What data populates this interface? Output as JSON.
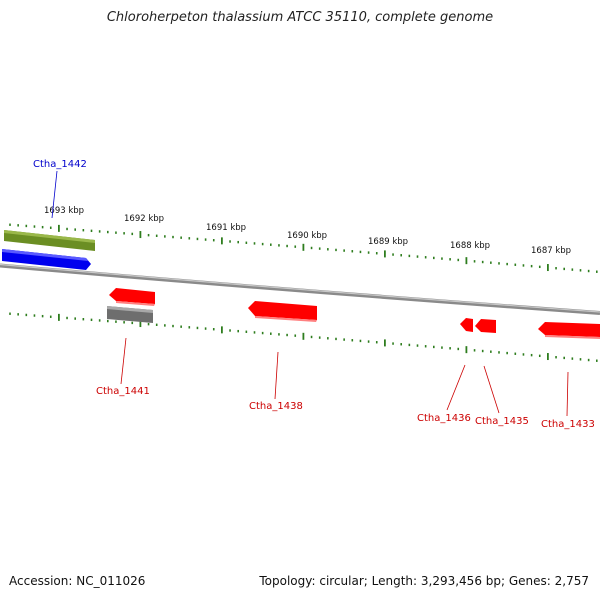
{
  "title": "Chloroherpeton thalassium ATCC 35110, complete genome",
  "footer": {
    "accession": "Accession: NC_011026",
    "summary": "Topology: circular; Length: 3,293,456 bp; Genes: 2,757"
  },
  "colors": {
    "tick": "#2e7d1e",
    "backbone": "#8a8a8a",
    "gene_red": "#ff0000",
    "gene_blue": "#0000ee",
    "gene_olive": "#6b8e23",
    "gene_gray": "#707070",
    "label_red": "#cc0000",
    "label_blue": "#0000cc"
  },
  "scale_labels": [
    "1693 kbp",
    "1692 kbp",
    "1691 kbp",
    "1690 kbp",
    "1689 kbp",
    "1688 kbp",
    "1687 kbp"
  ],
  "genes": [
    {
      "label": "Ctha_1442",
      "strand": "+",
      "color": "blue"
    },
    {
      "label": "Ctha_1441",
      "strand": "-",
      "color": "red"
    },
    {
      "label": "Ctha_1438",
      "strand": "-",
      "color": "red"
    },
    {
      "label": "Ctha_1436",
      "strand": "-",
      "color": "red"
    },
    {
      "label": "Ctha_1435",
      "strand": "-",
      "color": "red"
    },
    {
      "label": "Ctha_1433",
      "strand": "-",
      "color": "red"
    }
  ]
}
